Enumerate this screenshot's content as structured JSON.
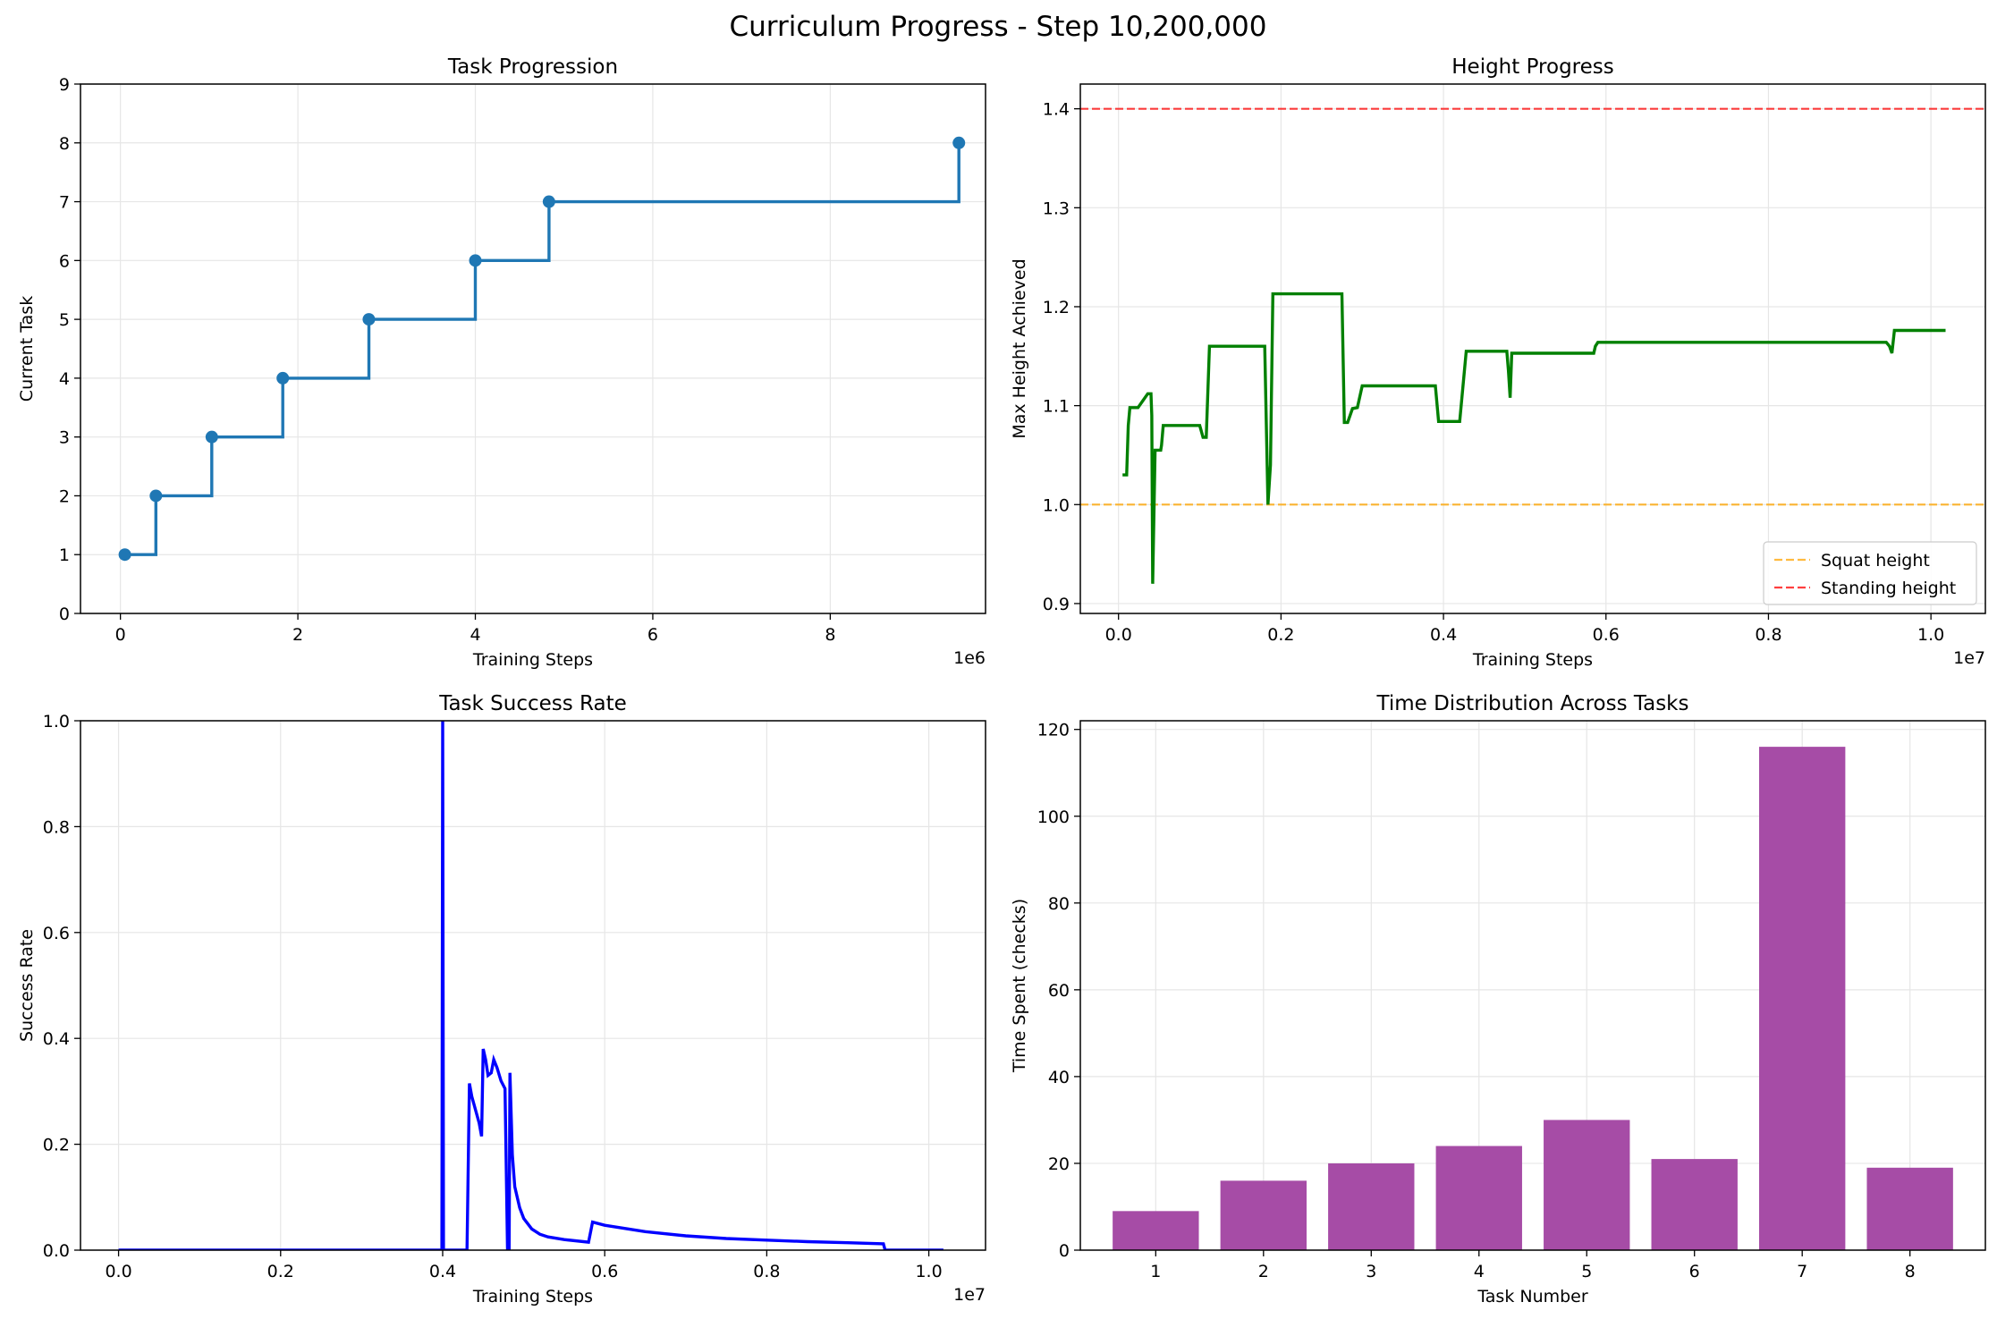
{
  "figure": {
    "title": "Curriculum Progress - Step 10,200,000"
  },
  "chart_data": [
    {
      "type": "line",
      "style": "step",
      "title": "Task Progression",
      "xlabel": "Training Steps",
      "ylabel": "Current Task",
      "x_multiplier": "1e6",
      "xlim": [
        -0.45,
        9.75
      ],
      "ylim": [
        0,
        9
      ],
      "xticks": [
        0,
        2,
        4,
        6,
        8
      ],
      "yticks": [
        0,
        1,
        2,
        3,
        4,
        5,
        6,
        7,
        8,
        9
      ],
      "grid": true,
      "color": "#1f77b4",
      "series": [
        {
          "x": [
            0.05,
            0.4,
            1.03,
            1.83,
            2.8,
            4.0,
            4.83,
            9.45
          ],
          "y": [
            1,
            2,
            3,
            4,
            5,
            6,
            7,
            8
          ]
        }
      ]
    },
    {
      "type": "line",
      "title": "Height Progress",
      "xlabel": "Training Steps",
      "ylabel": "Max Height Achieved",
      "x_multiplier": "1e7",
      "xlim": [
        -0.047,
        1.067
      ],
      "ylim": [
        0.89,
        1.425
      ],
      "xticks": [
        0.0,
        0.2,
        0.4,
        0.6,
        0.8,
        1.0
      ],
      "yticks": [
        0.9,
        1.0,
        1.1,
        1.2,
        1.3,
        1.4
      ],
      "grid": true,
      "legend_position": "lower-right",
      "reference_lines": [
        {
          "name": "Squat height",
          "y": 1.0,
          "color": "#ffa500",
          "style": "dashed"
        },
        {
          "name": "Standing height",
          "y": 1.4,
          "color": "#ff0000",
          "style": "dashed"
        }
      ],
      "series": [
        {
          "color": "#008000",
          "x": [
            0.005,
            0.01,
            0.012,
            0.014,
            0.018,
            0.024,
            0.03,
            0.036,
            0.04,
            0.041,
            0.042,
            0.045,
            0.047,
            0.052,
            0.053,
            0.055,
            0.061,
            0.1,
            0.104,
            0.108,
            0.112,
            0.114,
            0.18,
            0.184,
            0.187,
            0.19,
            0.275,
            0.278,
            0.282,
            0.288,
            0.294,
            0.3,
            0.303,
            0.39,
            0.394,
            0.42,
            0.428,
            0.478,
            0.48,
            0.482,
            0.484,
            0.487,
            0.585,
            0.587,
            0.59,
            0.945,
            0.949,
            0.952,
            0.955,
            1.018
          ],
          "y": [
            1.03,
            1.03,
            1.08,
            1.098,
            1.098,
            1.098,
            1.105,
            1.112,
            1.112,
            1.09,
            0.92,
            1.055,
            1.055,
            1.055,
            1.06,
            1.08,
            1.08,
            1.08,
            1.068,
            1.068,
            1.16,
            1.16,
            1.16,
            1.0,
            1.04,
            1.213,
            1.213,
            1.083,
            1.083,
            1.097,
            1.098,
            1.12,
            1.12,
            1.12,
            1.084,
            1.084,
            1.155,
            1.155,
            1.135,
            1.108,
            1.153,
            1.153,
            1.153,
            1.16,
            1.164,
            1.164,
            1.16,
            1.153,
            1.176,
            1.176
          ]
        }
      ]
    },
    {
      "type": "line",
      "title": "Task Success Rate",
      "xlabel": "Training Steps",
      "ylabel": "Success Rate",
      "x_multiplier": "1e7",
      "xlim": [
        -0.047,
        1.07
      ],
      "ylim": [
        0,
        1
      ],
      "xticks": [
        0.0,
        0.2,
        0.4,
        0.6,
        0.8,
        1.0
      ],
      "yticks": [
        0.0,
        0.2,
        0.4,
        0.6,
        0.8,
        1.0
      ],
      "grid": true,
      "series": [
        {
          "color": "#0000ff",
          "x": [
            0.0,
            0.399,
            0.4,
            0.401,
            0.43,
            0.433,
            0.436,
            0.445,
            0.448,
            0.45,
            0.453,
            0.456,
            0.46,
            0.463,
            0.467,
            0.472,
            0.477,
            0.48,
            0.482,
            0.483,
            0.486,
            0.489,
            0.495,
            0.5,
            0.51,
            0.52,
            0.53,
            0.55,
            0.58,
            0.585,
            0.6,
            0.65,
            0.7,
            0.75,
            0.8,
            0.85,
            0.9,
            0.944,
            0.946,
            1.018
          ],
          "y": [
            0.0,
            0.0,
            1.0,
            0.0,
            0.0,
            0.315,
            0.29,
            0.24,
            0.215,
            0.38,
            0.36,
            0.33,
            0.335,
            0.36,
            0.345,
            0.32,
            0.305,
            0.0,
            0.0,
            0.335,
            0.18,
            0.12,
            0.08,
            0.06,
            0.04,
            0.03,
            0.025,
            0.02,
            0.015,
            0.053,
            0.047,
            0.035,
            0.027,
            0.022,
            0.019,
            0.016,
            0.014,
            0.012,
            0.0,
            0.0
          ]
        }
      ]
    },
    {
      "type": "bar",
      "title": "Time Distribution Across Tasks",
      "xlabel": "Task Number",
      "ylabel": "Time Spent (checks)",
      "categories": [
        "1",
        "2",
        "3",
        "4",
        "5",
        "6",
        "7",
        "8"
      ],
      "values": [
        9,
        16,
        20,
        24,
        30,
        21,
        116,
        19
      ],
      "ylim": [
        0,
        122
      ],
      "yticks": [
        0,
        20,
        40,
        60,
        80,
        100,
        120
      ],
      "grid": true,
      "color": "#a64ca6"
    }
  ]
}
